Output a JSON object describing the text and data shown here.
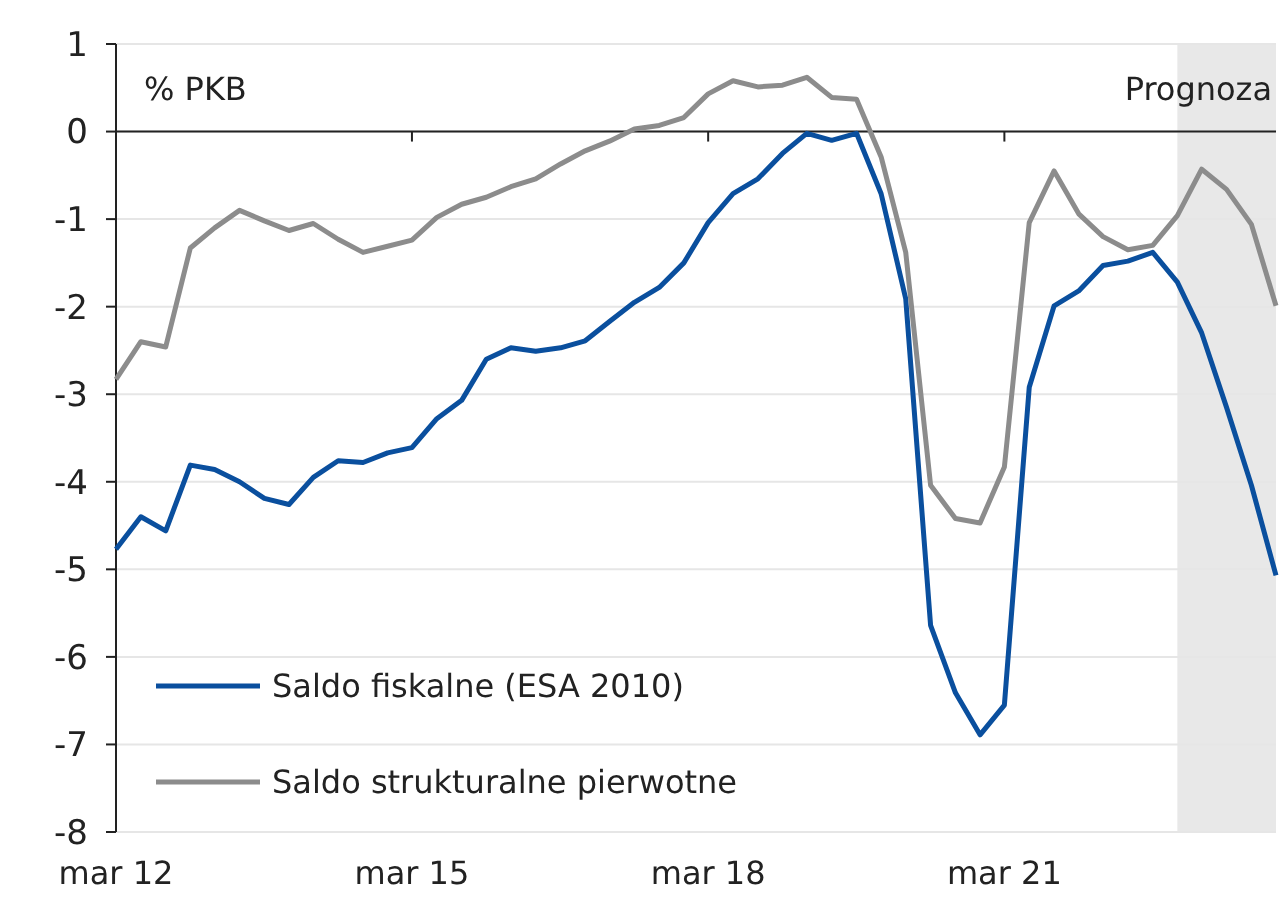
{
  "chart_data": {
    "type": "line",
    "ylabel": "% PKB",
    "x": [
      "2012-03",
      "2012-06",
      "2012-09",
      "2012-12",
      "2013-03",
      "2013-06",
      "2013-09",
      "2013-12",
      "2014-03",
      "2014-06",
      "2014-09",
      "2014-12",
      "2015-03",
      "2015-06",
      "2015-09",
      "2015-12",
      "2016-03",
      "2016-06",
      "2016-09",
      "2016-12",
      "2017-03",
      "2017-06",
      "2017-09",
      "2017-12",
      "2018-03",
      "2018-06",
      "2018-09",
      "2018-12",
      "2019-03",
      "2019-06",
      "2019-09",
      "2019-12",
      "2020-03",
      "2020-06",
      "2020-09",
      "2020-12",
      "2021-03",
      "2021-06",
      "2021-09",
      "2021-12",
      "2022-03",
      "2022-06",
      "2022-09",
      "2022-12",
      "2023-03",
      "2023-06",
      "2023-09",
      "2023-12"
    ],
    "series": [
      {
        "name": "Saldo fiskalne (ESA 2010)",
        "color": "#0a4f9e",
        "values": [
          -4.77,
          -4.4,
          -4.56,
          -3.81,
          -3.86,
          -4.0,
          -4.19,
          -4.26,
          -3.95,
          -3.76,
          -3.78,
          -3.67,
          -3.61,
          -3.28,
          -3.07,
          -2.6,
          -2.47,
          -2.51,
          -2.47,
          -2.39,
          -2.17,
          -1.95,
          -1.78,
          -1.5,
          -1.04,
          -0.71,
          -0.54,
          -0.25,
          -0.02,
          -0.1,
          -0.02,
          -0.71,
          -1.91,
          -5.64,
          -6.41,
          -6.89,
          -6.55,
          -2.92,
          -1.99,
          -1.82,
          -1.53,
          -1.48,
          -1.38,
          -1.72,
          -2.3,
          -3.15,
          -4.04,
          -5.07
        ]
      },
      {
        "name": "Saldo strukturalne pierwotne",
        "color": "#8c8c8c",
        "values": [
          -2.83,
          -2.4,
          -2.46,
          -1.33,
          -1.1,
          -0.9,
          -1.02,
          -1.13,
          -1.05,
          -1.23,
          -1.38,
          -1.31,
          -1.24,
          -0.98,
          -0.83,
          -0.75,
          -0.63,
          -0.54,
          -0.37,
          -0.22,
          -0.11,
          0.03,
          0.07,
          0.16,
          0.43,
          0.58,
          0.51,
          0.53,
          0.62,
          0.39,
          0.37,
          -0.29,
          -1.38,
          -4.04,
          -4.42,
          -4.47,
          -3.83,
          -1.04,
          -0.45,
          -0.94,
          -1.2,
          -1.35,
          -1.3,
          -0.96,
          -0.43,
          -0.66,
          -1.06,
          -1.99
        ]
      }
    ],
    "xlim": [
      "2012-03",
      "2023-12"
    ],
    "xticks": [
      {
        "value": "2012-03",
        "label": "mar 12"
      },
      {
        "value": "2015-03",
        "label": "mar 15"
      },
      {
        "value": "2018-03",
        "label": "mar 18"
      },
      {
        "value": "2021-03",
        "label": "mar 21"
      }
    ],
    "ylim": [
      -8,
      1
    ],
    "yticks": [
      -8,
      -7,
      -6,
      -5,
      -4,
      -3,
      -2,
      -1,
      0,
      1
    ],
    "bands": [
      {
        "axis": "x",
        "from": "2022-12",
        "to": "2023-12",
        "label": "Prognoza",
        "color": "#e8e8e8"
      }
    ],
    "grid": "y",
    "legend": "bottom left",
    "marker": "none",
    "line_style": "solid"
  }
}
